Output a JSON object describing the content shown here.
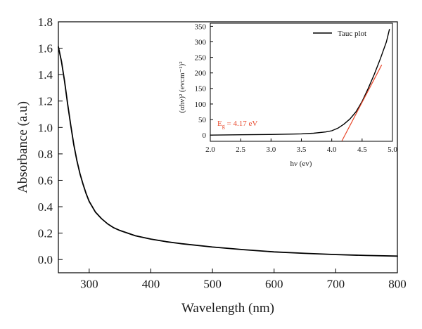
{
  "chart_data": [
    {
      "type": "line",
      "title": "",
      "xlabel": "Wavelength (nm)",
      "ylabel": "Absorbance (a.u)",
      "xlim": [
        250,
        800
      ],
      "ylim": [
        -0.1,
        1.8
      ],
      "xticks": [
        300,
        400,
        500,
        600,
        700,
        800
      ],
      "yticks": [
        "0.0",
        "0.2",
        "0.4",
        "0.6",
        "0.8",
        "1.0",
        "1.2",
        "1.4",
        "1.6",
        "1.8"
      ],
      "grid": false,
      "series": [
        {
          "color": "#000000",
          "x": [
            250,
            255,
            260,
            265,
            270,
            275,
            280,
            285,
            290,
            295,
            300,
            310,
            320,
            330,
            340,
            350,
            375,
            400,
            425,
            450,
            500,
            550,
            600,
            650,
            700,
            750,
            800
          ],
          "y": [
            1.61,
            1.5,
            1.35,
            1.18,
            1.02,
            0.87,
            0.75,
            0.65,
            0.57,
            0.5,
            0.44,
            0.36,
            0.31,
            0.27,
            0.24,
            0.22,
            0.18,
            0.155,
            0.135,
            0.12,
            0.095,
            0.075,
            0.058,
            0.047,
            0.038,
            0.031,
            0.026
          ]
        }
      ]
    },
    {
      "type": "line",
      "title": "",
      "xlabel": "hν (ev)",
      "ylabel": "(αhν)² (evcm⁻¹)²",
      "xlim": [
        2.0,
        5.0
      ],
      "ylim": [
        -20,
        360
      ],
      "xticks": [
        "2.0",
        "2.5",
        "3.0",
        "3.5",
        "4.0",
        "4.5",
        "5.0"
      ],
      "yticks": [
        "0",
        "50",
        "100",
        "150",
        "200",
        "250",
        "300",
        "350"
      ],
      "grid": false,
      "legend": {
        "position": "top-right",
        "entries": [
          "Tauc plot"
        ]
      },
      "series": [
        {
          "name": "Tauc plot",
          "color": "#000000",
          "x": [
            2.0,
            2.5,
            3.0,
            3.3,
            3.5,
            3.7,
            3.9,
            4.0,
            4.1,
            4.2,
            4.3,
            4.4,
            4.5,
            4.6,
            4.7,
            4.8,
            4.9,
            4.95
          ],
          "y": [
            0,
            1,
            2,
            3,
            4,
            6,
            10,
            14,
            22,
            35,
            52,
            75,
            108,
            150,
            195,
            245,
            300,
            340
          ]
        },
        {
          "color": "#e8472a",
          "x": [
            4.17,
            4.82
          ],
          "y": [
            -18,
            225
          ]
        }
      ],
      "annotations": [
        {
          "text": "E_g = 4.17 eV",
          "main": "E",
          "sub": "g",
          "rest": " = 4.17 eV",
          "color": "#e8472a"
        }
      ]
    }
  ]
}
